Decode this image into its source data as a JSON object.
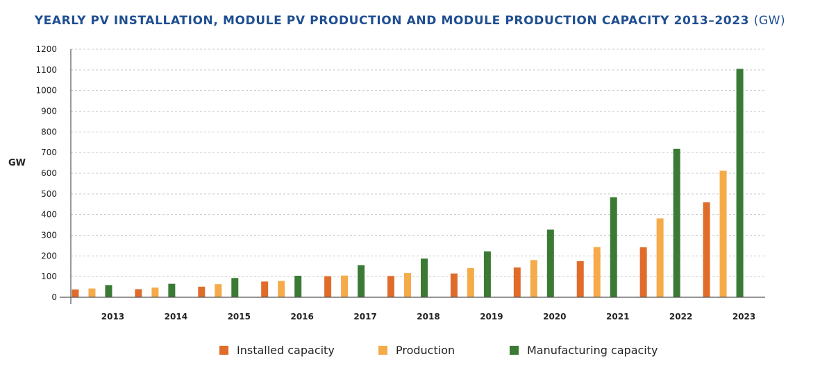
{
  "title": "YEARLY PV INSTALLATION, MODULE PV PRODUCTION AND MODULE PRODUCTION CAPACITY 2013–2023",
  "title_unit": "(GW)",
  "chart_data": {
    "type": "bar",
    "categories": [
      "2013",
      "2014",
      "2015",
      "2016",
      "2017",
      "2018",
      "2019",
      "2020",
      "2021",
      "2022",
      "2023"
    ],
    "series": [
      {
        "name": "Installed capacity",
        "color": "#e06c2c",
        "values": [
          38,
          39,
          51,
          76,
          102,
          103,
          115,
          144,
          175,
          242,
          459
        ]
      },
      {
        "name": "Production",
        "color": "#f5ab4a",
        "values": [
          42,
          47,
          63,
          79,
          105,
          117,
          141,
          180,
          243,
          381,
          612
        ]
      },
      {
        "name": "Manufacturing capacity",
        "color": "#3a7a35",
        "values": [
          59,
          65,
          93,
          104,
          155,
          187,
          222,
          327,
          484,
          718,
          1105
        ]
      }
    ],
    "xlabel": "",
    "ylabel": "GW",
    "ylim": [
      0,
      1200
    ],
    "yticks": [
      0,
      100,
      200,
      300,
      400,
      500,
      600,
      700,
      800,
      900,
      1000,
      1100,
      1200
    ],
    "grid": true,
    "legend": "bottom"
  }
}
